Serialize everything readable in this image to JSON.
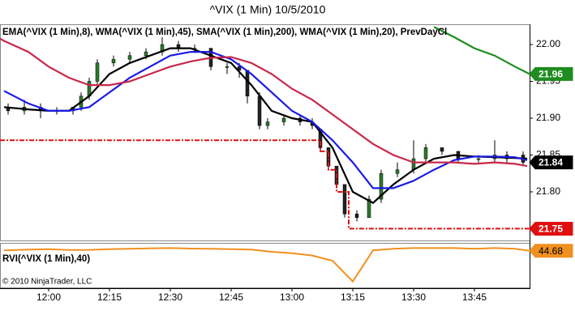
{
  "chart_data": [
    {
      "type": "candlestick",
      "title": "^VIX (1 Min)  10/5/2010",
      "indicator_label": "EMA(^VIX (1 Min),8), WMA(^VIX (1 Min),45), SMA(^VIX (1 Min),200), WMA(^VIX (1 Min),20), PrevDayCl",
      "copyright": "© 2010 NinjaTrader, LLC",
      "xlim": [
        708,
        838.6
      ],
      "xticks": [
        {
          "value": 720,
          "label": "12:00"
        },
        {
          "value": 735,
          "label": "12:15"
        },
        {
          "value": 750,
          "label": "12:30"
        },
        {
          "value": 765,
          "label": "12:45"
        },
        {
          "value": 780,
          "label": "13:00"
        },
        {
          "value": 795,
          "label": "13:15"
        },
        {
          "value": 810,
          "label": "13:30"
        },
        {
          "value": 825,
          "label": "13:45"
        }
      ],
      "ylim": [
        21.734,
        22.0275
      ],
      "yticks": [
        {
          "value": 22,
          "label": "22.00"
        },
        21.95,
        {
          "value": 21.9,
          "label": "21.90"
        },
        21.85,
        {
          "value": 21.8,
          "label": "21.80"
        }
      ],
      "up_color": "#2b7a2b",
      "down_color": "#222222",
      "candles": {
        "x": [
          710,
          714,
          718,
          722,
          726,
          728,
          730,
          732,
          736,
          740,
          744,
          748,
          752,
          756,
          760,
          764,
          767,
          769,
          772,
          774,
          778,
          782,
          785,
          787,
          789,
          791,
          793,
          796,
          799,
          802,
          806,
          810,
          813,
          817,
          821,
          826,
          830,
          833,
          837
        ],
        "open": [
          21.915,
          21.91,
          21.915,
          21.91,
          21.91,
          21.915,
          21.93,
          21.95,
          21.975,
          21.98,
          21.985,
          21.99,
          22.0,
          21.995,
          21.995,
          21.97,
          21.97,
          21.965,
          21.93,
          21.89,
          21.895,
          21.9,
          21.895,
          21.885,
          21.86,
          21.835,
          21.81,
          21.77,
          21.765,
          21.79,
          21.825,
          21.83,
          21.845,
          21.86,
          21.855,
          21.845,
          21.845,
          21.85,
          21.85
        ],
        "high": [
          21.92,
          21.925,
          21.92,
          21.915,
          21.915,
          21.935,
          21.955,
          21.98,
          21.985,
          21.99,
          21.995,
          22.01,
          22.005,
          22.0,
          21.995,
          21.975,
          21.975,
          21.965,
          21.935,
          21.9,
          21.905,
          21.905,
          21.9,
          21.885,
          21.86,
          21.835,
          21.81,
          21.775,
          21.795,
          21.83,
          21.84,
          21.87,
          21.865,
          21.86,
          21.855,
          21.85,
          21.87,
          21.855,
          21.855
        ],
        "low": [
          21.905,
          21.905,
          21.9,
          21.905,
          21.905,
          21.91,
          21.925,
          21.945,
          21.97,
          21.975,
          21.98,
          21.985,
          21.99,
          21.99,
          21.965,
          21.96,
          21.955,
          21.92,
          21.885,
          21.885,
          21.89,
          21.89,
          21.885,
          21.855,
          21.83,
          21.805,
          21.765,
          21.76,
          21.765,
          21.785,
          21.82,
          21.825,
          21.84,
          21.85,
          21.84,
          21.84,
          21.84,
          21.84,
          21.835
        ],
        "close": [
          21.91,
          21.915,
          21.91,
          21.91,
          21.915,
          21.93,
          21.95,
          21.975,
          21.98,
          21.985,
          21.99,
          22.0,
          21.995,
          21.995,
          21.97,
          21.97,
          21.965,
          21.93,
          21.89,
          21.895,
          21.9,
          21.895,
          21.89,
          21.86,
          21.835,
          21.81,
          21.77,
          21.765,
          21.79,
          21.825,
          21.83,
          21.845,
          21.86,
          21.855,
          21.845,
          21.845,
          21.85,
          21.845,
          21.84
        ]
      },
      "last_color": "#000000",
      "series": [
        {
          "color": "#000000",
          "dash": false,
          "x": [
            709,
            715,
            720,
            725,
            730,
            735,
            740,
            745,
            750,
            755,
            760,
            765,
            770,
            775,
            780,
            785,
            790,
            795,
            800,
            805,
            810,
            815,
            820,
            825,
            830,
            835,
            838
          ],
          "values": [
            21.915,
            21.912,
            21.91,
            21.91,
            21.93,
            21.96,
            21.975,
            21.985,
            21.995,
            21.995,
            21.985,
            21.975,
            21.945,
            21.91,
            21.9,
            21.895,
            21.86,
            21.8,
            21.785,
            21.81,
            21.83,
            21.845,
            21.85,
            21.848,
            21.847,
            21.846,
            21.845
          ]
        },
        {
          "color": "#1a1ae6",
          "dash": false,
          "x": [
            709,
            715,
            720,
            725,
            730,
            735,
            740,
            745,
            750,
            755,
            760,
            765,
            770,
            775,
            780,
            785,
            790,
            795,
            800,
            805,
            810,
            815,
            820,
            825,
            830,
            835,
            838
          ],
          "values": [
            21.937,
            21.92,
            21.91,
            21.91,
            21.915,
            21.935,
            21.955,
            21.97,
            21.985,
            21.99,
            21.99,
            21.98,
            21.96,
            21.935,
            21.91,
            21.895,
            21.87,
            21.84,
            21.805,
            21.805,
            21.815,
            21.83,
            21.843,
            21.848,
            21.848,
            21.847,
            21.843
          ]
        },
        {
          "color": "#c8284a",
          "dash": false,
          "x": [
            708,
            709,
            715,
            720,
            725,
            730,
            735,
            740,
            745,
            750,
            755,
            760,
            765,
            770,
            775,
            780,
            785,
            790,
            795,
            800,
            805,
            810,
            815,
            820,
            825,
            830,
            835,
            838
          ],
          "values": [
            22.008,
            22.005,
            21.99,
            21.97,
            21.955,
            21.945,
            21.945,
            21.95,
            21.96,
            21.97,
            21.977,
            21.982,
            21.983,
            21.975,
            21.96,
            21.94,
            21.925,
            21.905,
            21.885,
            21.865,
            21.85,
            21.84,
            21.84,
            21.84,
            21.838,
            21.84,
            21.838,
            21.835
          ]
        },
        {
          "color": "#1e8c1e",
          "dash": false,
          "label_bg": true,
          "x": [
            815,
            820,
            825,
            830,
            835,
            838.6
          ],
          "values": [
            22.024,
            22.01,
            21.995,
            21.985,
            21.97,
            21.96
          ]
        },
        {
          "color": "#e01010",
          "dash": true,
          "label_bg": true,
          "x": [
            708,
            787,
            787,
            789,
            789,
            791,
            791,
            794,
            794,
            838.6
          ],
          "values": [
            21.87,
            21.87,
            21.855,
            21.855,
            21.83,
            21.83,
            21.8,
            21.8,
            21.75,
            21.75
          ]
        }
      ]
    },
    {
      "type": "line",
      "title": "RVI(^VIX (1 Min),40)",
      "ylim": [
        20,
        50
      ],
      "color": "#f0901e",
      "x": [
        709,
        715,
        720,
        725,
        730,
        735,
        740,
        745,
        750,
        755,
        760,
        765,
        770,
        775,
        780,
        785,
        790,
        795,
        800,
        805,
        810,
        815,
        820,
        825,
        830,
        835,
        838.6
      ],
      "values": [
        45,
        45.5,
        45.8,
        45.2,
        45.3,
        45.8,
        46,
        46.3,
        46.5,
        46.2,
        46,
        45.8,
        45.5,
        44,
        43,
        41.5,
        38,
        24,
        45,
        46,
        46.5,
        46.5,
        46.5,
        46,
        46.5,
        46,
        44.68
      ]
    }
  ]
}
